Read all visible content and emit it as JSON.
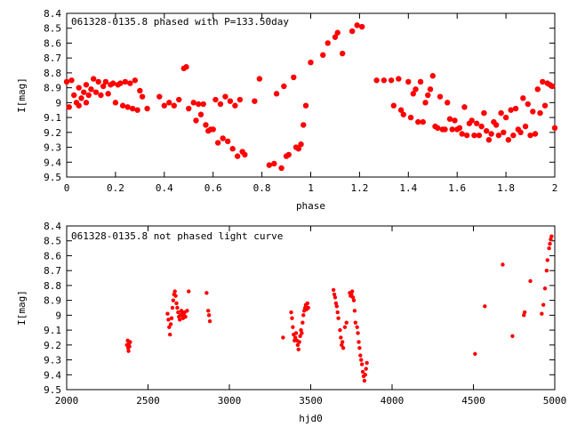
{
  "chart_data": [
    {
      "type": "scatter",
      "title": "061328-0135.8 phased with P=133.50day",
      "xlabel": "phase",
      "ylabel": "I[mag]",
      "xlim": [
        0,
        2
      ],
      "ylim": [
        9.5,
        8.4
      ],
      "y_inverted": true,
      "xticks": [
        "0",
        "0.2",
        "0.4",
        "0.6",
        "0.8",
        "1",
        "1.2",
        "1.4",
        "1.6",
        "1.8",
        "2"
      ],
      "yticks": [
        "8.4",
        "8.5",
        "8.6",
        "8.7",
        "8.8",
        "8.9",
        "9",
        "9.1",
        "9.2",
        "9.3",
        "9.4",
        "9.5"
      ],
      "marker_color": "#ff0000",
      "grid": false,
      "points": [
        [
          0.0,
          8.86
        ],
        [
          0.01,
          9.03
        ],
        [
          0.02,
          8.85
        ],
        [
          0.03,
          8.95
        ],
        [
          0.04,
          9.0
        ],
        [
          0.05,
          8.9
        ],
        [
          0.05,
          9.02
        ],
        [
          0.06,
          8.97
        ],
        [
          0.07,
          8.93
        ],
        [
          0.08,
          8.88
        ],
        [
          0.08,
          9.0
        ],
        [
          0.09,
          8.95
        ],
        [
          0.1,
          8.91
        ],
        [
          0.11,
          8.84
        ],
        [
          0.12,
          8.93
        ],
        [
          0.13,
          8.86
        ],
        [
          0.14,
          8.95
        ],
        [
          0.15,
          8.89
        ],
        [
          0.16,
          8.86
        ],
        [
          0.17,
          8.94
        ],
        [
          0.18,
          8.88
        ],
        [
          0.19,
          8.87
        ],
        [
          0.2,
          9.0
        ],
        [
          0.21,
          8.88
        ],
        [
          0.22,
          8.87
        ],
        [
          0.23,
          9.02
        ],
        [
          0.24,
          8.86
        ],
        [
          0.25,
          9.03
        ],
        [
          0.26,
          8.87
        ],
        [
          0.27,
          9.04
        ],
        [
          0.28,
          8.85
        ],
        [
          0.29,
          9.05
        ],
        [
          0.3,
          8.92
        ],
        [
          0.31,
          8.96
        ],
        [
          0.33,
          9.04
        ],
        [
          0.38,
          8.96
        ],
        [
          0.4,
          9.02
        ],
        [
          0.42,
          9.0
        ],
        [
          0.44,
          9.02
        ],
        [
          0.46,
          8.98
        ],
        [
          0.48,
          8.77
        ],
        [
          0.49,
          8.76
        ],
        [
          0.5,
          9.04
        ],
        [
          0.52,
          9.0
        ],
        [
          0.53,
          9.12
        ],
        [
          0.54,
          9.01
        ],
        [
          0.55,
          9.08
        ],
        [
          0.56,
          9.01
        ],
        [
          0.57,
          9.15
        ],
        [
          0.58,
          9.19
        ],
        [
          0.59,
          9.18
        ],
        [
          0.6,
          9.18
        ],
        [
          0.61,
          8.98
        ],
        [
          0.62,
          9.27
        ],
        [
          0.63,
          9.01
        ],
        [
          0.64,
          9.24
        ],
        [
          0.65,
          8.96
        ],
        [
          0.66,
          9.26
        ],
        [
          0.67,
          8.99
        ],
        [
          0.68,
          9.31
        ],
        [
          0.69,
          9.02
        ],
        [
          0.7,
          9.36
        ],
        [
          0.71,
          8.98
        ],
        [
          0.72,
          9.33
        ],
        [
          0.73,
          9.35
        ],
        [
          0.77,
          8.99
        ],
        [
          0.79,
          8.84
        ],
        [
          0.83,
          9.42
        ],
        [
          0.85,
          9.41
        ],
        [
          0.86,
          8.94
        ],
        [
          0.88,
          9.44
        ],
        [
          0.89,
          8.89
        ],
        [
          0.9,
          9.36
        ],
        [
          0.91,
          9.35
        ],
        [
          0.93,
          8.83
        ],
        [
          0.94,
          9.3
        ],
        [
          0.95,
          9.31
        ],
        [
          0.96,
          9.28
        ],
        [
          0.97,
          9.15
        ],
        [
          0.98,
          9.02
        ],
        [
          1.0,
          8.73
        ],
        [
          1.05,
          8.68
        ],
        [
          1.07,
          8.6
        ],
        [
          1.1,
          8.56
        ],
        [
          1.11,
          8.53
        ],
        [
          1.13,
          8.67
        ],
        [
          1.17,
          8.52
        ],
        [
          1.19,
          8.48
        ],
        [
          1.21,
          8.49
        ],
        [
          1.27,
          8.85
        ],
        [
          1.3,
          8.85
        ],
        [
          1.33,
          8.85
        ],
        [
          1.34,
          9.02
        ],
        [
          1.36,
          8.84
        ],
        [
          1.37,
          9.05
        ],
        [
          1.38,
          9.08
        ],
        [
          1.4,
          8.86
        ],
        [
          1.41,
          9.1
        ],
        [
          1.42,
          8.94
        ],
        [
          1.43,
          8.91
        ],
        [
          1.44,
          9.13
        ],
        [
          1.45,
          8.86
        ],
        [
          1.46,
          9.13
        ],
        [
          1.47,
          9.0
        ],
        [
          1.48,
          8.95
        ],
        [
          1.49,
          8.91
        ],
        [
          1.5,
          8.82
        ],
        [
          1.51,
          9.16
        ],
        [
          1.52,
          9.17
        ],
        [
          1.53,
          8.96
        ],
        [
          1.54,
          9.18
        ],
        [
          1.55,
          9.18
        ],
        [
          1.56,
          9.0
        ],
        [
          1.57,
          9.11
        ],
        [
          1.58,
          9.18
        ],
        [
          1.59,
          9.12
        ],
        [
          1.6,
          9.18
        ],
        [
          1.61,
          9.17
        ],
        [
          1.62,
          9.21
        ],
        [
          1.63,
          9.03
        ],
        [
          1.64,
          9.22
        ],
        [
          1.65,
          9.14
        ],
        [
          1.66,
          9.12
        ],
        [
          1.67,
          9.22
        ],
        [
          1.68,
          9.14
        ],
        [
          1.69,
          9.22
        ],
        [
          1.7,
          9.16
        ],
        [
          1.71,
          9.07
        ],
        [
          1.72,
          9.19
        ],
        [
          1.73,
          9.25
        ],
        [
          1.74,
          9.21
        ],
        [
          1.75,
          9.13
        ],
        [
          1.76,
          9.15
        ],
        [
          1.77,
          9.22
        ],
        [
          1.78,
          9.07
        ],
        [
          1.79,
          9.2
        ],
        [
          1.8,
          9.1
        ],
        [
          1.81,
          9.25
        ],
        [
          1.82,
          9.05
        ],
        [
          1.83,
          9.22
        ],
        [
          1.84,
          9.04
        ],
        [
          1.85,
          9.18
        ],
        [
          1.86,
          9.2
        ],
        [
          1.87,
          8.97
        ],
        [
          1.88,
          9.16
        ],
        [
          1.89,
          9.01
        ],
        [
          1.9,
          9.22
        ],
        [
          1.91,
          9.06
        ],
        [
          1.92,
          9.21
        ],
        [
          1.93,
          8.91
        ],
        [
          1.94,
          9.07
        ],
        [
          1.95,
          8.86
        ],
        [
          1.96,
          9.02
        ],
        [
          1.97,
          8.87
        ],
        [
          1.98,
          8.88
        ],
        [
          1.99,
          8.89
        ],
        [
          2.0,
          9.17
        ]
      ]
    },
    {
      "type": "scatter",
      "title": "061328-0135.8 not phased light curve",
      "xlabel": "hjd0",
      "ylabel": "I[mag]",
      "xlim": [
        2000,
        5000
      ],
      "ylim": [
        9.5,
        8.4
      ],
      "y_inverted": true,
      "xticks": [
        "2000",
        "2500",
        "3000",
        "3500",
        "4000",
        "4500",
        "5000"
      ],
      "yticks": [
        "8.4",
        "8.5",
        "8.6",
        "8.7",
        "8.8",
        "8.9",
        "9",
        "9.1",
        "9.2",
        "9.3",
        "9.4",
        "9.5"
      ],
      "marker_color": "#ff0000",
      "grid": false,
      "points": [
        [
          2370,
          9.2
        ],
        [
          2375,
          9.17
        ],
        [
          2378,
          9.22
        ],
        [
          2380,
          9.24
        ],
        [
          2383,
          9.19
        ],
        [
          2386,
          9.21
        ],
        [
          2390,
          9.18
        ],
        [
          2620,
          8.99
        ],
        [
          2625,
          9.03
        ],
        [
          2630,
          9.08
        ],
        [
          2635,
          9.13
        ],
        [
          2640,
          9.06
        ],
        [
          2645,
          9.02
        ],
        [
          2650,
          8.95
        ],
        [
          2655,
          8.9
        ],
        [
          2660,
          8.86
        ],
        [
          2665,
          8.84
        ],
        [
          2670,
          8.87
        ],
        [
          2675,
          8.92
        ],
        [
          2680,
          8.95
        ],
        [
          2685,
          8.98
        ],
        [
          2690,
          9.01
        ],
        [
          2695,
          9.03
        ],
        [
          2700,
          9.0
        ],
        [
          2705,
          8.97
        ],
        [
          2710,
          8.99
        ],
        [
          2715,
          9.02
        ],
        [
          2720,
          9.0
        ],
        [
          2725,
          8.98
        ],
        [
          2730,
          9.01
        ],
        [
          2740,
          8.97
        ],
        [
          2750,
          8.84
        ],
        [
          2860,
          8.85
        ],
        [
          2870,
          8.97
        ],
        [
          2875,
          9.0
        ],
        [
          2880,
          9.04
        ],
        [
          3330,
          9.15
        ],
        [
          3380,
          8.98
        ],
        [
          3385,
          9.02
        ],
        [
          3390,
          9.08
        ],
        [
          3395,
          9.13
        ],
        [
          3400,
          9.17
        ],
        [
          3405,
          9.15
        ],
        [
          3410,
          9.12
        ],
        [
          3415,
          9.17
        ],
        [
          3420,
          9.2
        ],
        [
          3425,
          9.23
        ],
        [
          3430,
          9.18
        ],
        [
          3435,
          9.14
        ],
        [
          3440,
          9.1
        ],
        [
          3445,
          9.12
        ],
        [
          3450,
          9.05
        ],
        [
          3455,
          9.0
        ],
        [
          3460,
          8.97
        ],
        [
          3465,
          8.95
        ],
        [
          3470,
          8.93
        ],
        [
          3475,
          8.96
        ],
        [
          3480,
          8.92
        ],
        [
          3485,
          8.95
        ],
        [
          3640,
          8.83
        ],
        [
          3645,
          8.86
        ],
        [
          3650,
          8.88
        ],
        [
          3655,
          8.92
        ],
        [
          3660,
          8.94
        ],
        [
          3665,
          8.98
        ],
        [
          3670,
          9.02
        ],
        [
          3680,
          9.1
        ],
        [
          3685,
          9.15
        ],
        [
          3690,
          9.2
        ],
        [
          3695,
          9.18
        ],
        [
          3700,
          9.22
        ],
        [
          3710,
          9.08
        ],
        [
          3720,
          9.05
        ],
        [
          3740,
          8.85
        ],
        [
          3745,
          8.87
        ],
        [
          3750,
          8.86
        ],
        [
          3755,
          8.84
        ],
        [
          3760,
          8.88
        ],
        [
          3765,
          8.9
        ],
        [
          3770,
          8.97
        ],
        [
          3775,
          9.05
        ],
        [
          3785,
          9.08
        ],
        [
          3790,
          9.12
        ],
        [
          3795,
          9.18
        ],
        [
          3800,
          9.22
        ],
        [
          3805,
          9.27
        ],
        [
          3810,
          9.3
        ],
        [
          3815,
          9.33
        ],
        [
          3820,
          9.38
        ],
        [
          3825,
          9.41
        ],
        [
          3830,
          9.44
        ],
        [
          3835,
          9.4
        ],
        [
          3840,
          9.36
        ],
        [
          3845,
          9.32
        ],
        [
          4510,
          9.26
        ],
        [
          4570,
          8.94
        ],
        [
          4680,
          8.66
        ],
        [
          4740,
          9.14
        ],
        [
          4810,
          9.0
        ],
        [
          4815,
          8.98
        ],
        [
          4850,
          8.77
        ],
        [
          4920,
          8.99
        ],
        [
          4930,
          8.93
        ],
        [
          4940,
          8.82
        ],
        [
          4950,
          8.7
        ],
        [
          4955,
          8.63
        ],
        [
          4965,
          8.55
        ],
        [
          4970,
          8.52
        ],
        [
          4975,
          8.49
        ],
        [
          4980,
          8.47
        ]
      ]
    }
  ]
}
